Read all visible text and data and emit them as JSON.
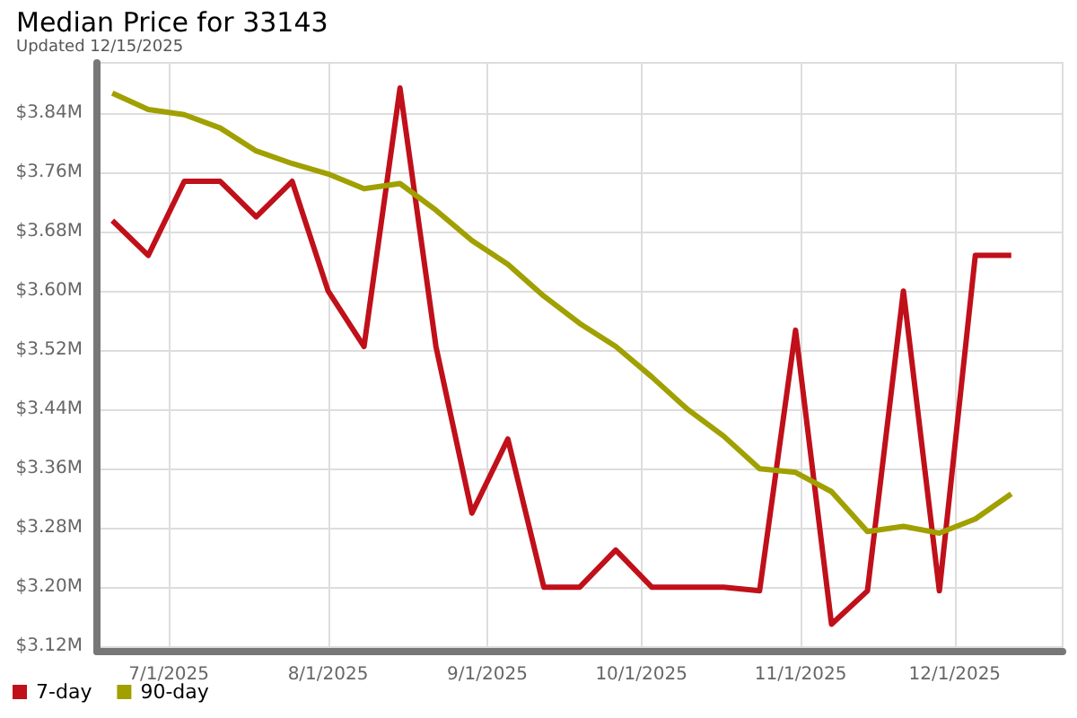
{
  "chart_data": {
    "type": "line",
    "title": "Median Price for 33143",
    "subtitle": "Updated 12/15/2025",
    "x": [
      "2025-06-20",
      "2025-06-27",
      "2025-07-04",
      "2025-07-11",
      "2025-07-18",
      "2025-07-25",
      "2025-08-01",
      "2025-08-08",
      "2025-08-15",
      "2025-08-22",
      "2025-08-29",
      "2025-09-05",
      "2025-09-12",
      "2025-09-19",
      "2025-09-26",
      "2025-10-03",
      "2025-10-10",
      "2025-10-17",
      "2025-10-24",
      "2025-10-31",
      "2025-11-07",
      "2025-11-14",
      "2025-11-21",
      "2025-11-28",
      "2025-12-05",
      "2025-12-12"
    ],
    "series": [
      {
        "name": "7-day",
        "color": "#c0101a",
        "values": [
          3.695,
          3.648,
          3.748,
          3.748,
          3.7,
          3.748,
          3.6,
          3.525,
          3.874,
          3.525,
          3.3,
          3.4,
          3.2,
          3.2,
          3.25,
          3.2,
          3.2,
          3.2,
          3.195,
          3.547,
          3.15,
          3.195,
          3.6,
          3.195,
          3.648,
          3.648
        ]
      },
      {
        "name": "90-day",
        "color": "#a0a000",
        "values": [
          3.867,
          3.845,
          3.838,
          3.82,
          3.789,
          3.772,
          3.758,
          3.738,
          3.745,
          3.709,
          3.668,
          3.636,
          3.593,
          3.556,
          3.525,
          3.484,
          3.44,
          3.404,
          3.36,
          3.355,
          3.329,
          3.275,
          3.282,
          3.273,
          3.292,
          3.326
        ]
      }
    ],
    "xlim": [
      "2025-06-17",
      "2025-12-22"
    ],
    "xticks": [
      {
        "value": "2025-07-01",
        "label": "7/1/2025"
      },
      {
        "value": "2025-08-01",
        "label": "8/1/2025"
      },
      {
        "value": "2025-09-01",
        "label": "9/1/2025"
      },
      {
        "value": "2025-10-01",
        "label": "10/1/2025"
      },
      {
        "value": "2025-11-01",
        "label": "11/1/2025"
      },
      {
        "value": "2025-12-01",
        "label": "12/1/2025"
      }
    ],
    "ylim": [
      3.113,
      3.908
    ],
    "yticks": [
      {
        "value": 3.12,
        "label": "$3.12M"
      },
      {
        "value": 3.2,
        "label": "$3.20M"
      },
      {
        "value": 3.28,
        "label": "$3.28M"
      },
      {
        "value": 3.36,
        "label": "$3.36M"
      },
      {
        "value": 3.44,
        "label": "$3.44M"
      },
      {
        "value": 3.52,
        "label": "$3.52M"
      },
      {
        "value": 3.6,
        "label": "$3.60M"
      },
      {
        "value": 3.68,
        "label": "$3.68M"
      },
      {
        "value": 3.76,
        "label": "$3.76M"
      },
      {
        "value": 3.84,
        "label": "$3.84M"
      }
    ],
    "grid": true,
    "legend": "bottom left",
    "marker": "none",
    "line_style": "solid"
  }
}
